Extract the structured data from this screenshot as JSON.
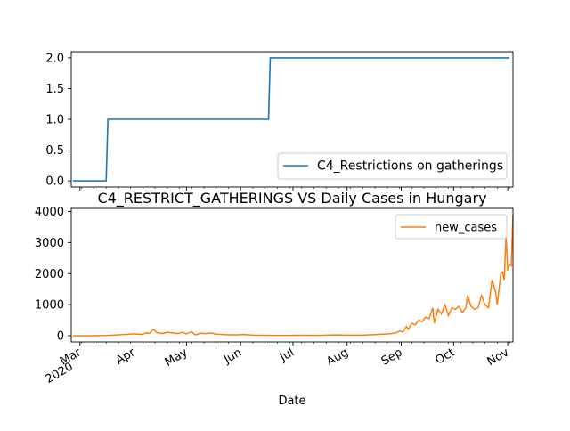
{
  "chart_data": [
    {
      "type": "line",
      "title": "",
      "xlabel": "",
      "ylabel": "",
      "ylim": [
        -0.1,
        2.1
      ],
      "yticks": [
        "0.0",
        "0.5",
        "1.0",
        "1.5",
        "2.0"
      ],
      "grid": false,
      "legend_position": "lower-right",
      "series": [
        {
          "name": "C4_Restrictions on gatherings",
          "color": "#1f77b4",
          "points": [
            [
              "2020-02-26",
              0
            ],
            [
              "2020-03-16",
              0
            ],
            [
              "2020-03-17",
              1
            ],
            [
              "2020-06-17",
              1
            ],
            [
              "2020-06-18",
              2
            ],
            [
              "2020-11-02",
              2
            ]
          ]
        }
      ]
    },
    {
      "type": "line",
      "title": "C4_RESTRICT_GATHERINGS VS Daily Cases in Hungary",
      "xlabel": "Date",
      "ylabel": "",
      "ylim": [
        -200,
        4100
      ],
      "yticks": [
        "0",
        "1000",
        "2000",
        "3000",
        "4000"
      ],
      "grid": false,
      "legend_position": "top-right",
      "xticks": [
        {
          "date": "2020-03-01",
          "label": "Mar",
          "sublabel": "2020"
        },
        {
          "date": "2020-04-01",
          "label": "Apr"
        },
        {
          "date": "2020-05-01",
          "label": "May"
        },
        {
          "date": "2020-06-01",
          "label": "Jun"
        },
        {
          "date": "2020-07-01",
          "label": "Jul"
        },
        {
          "date": "2020-08-01",
          "label": "Aug"
        },
        {
          "date": "2020-09-01",
          "label": "Sep"
        },
        {
          "date": "2020-10-01",
          "label": "Oct"
        },
        {
          "date": "2020-11-01",
          "label": "Nov"
        }
      ],
      "series": [
        {
          "name": "new_cases",
          "color": "#ff7f0e",
          "points": [
            [
              "2020-02-26",
              0
            ],
            [
              "2020-03-05",
              2
            ],
            [
              "2020-03-15",
              6
            ],
            [
              "2020-03-20",
              20
            ],
            [
              "2020-03-25",
              35
            ],
            [
              "2020-03-30",
              50
            ],
            [
              "2020-04-01",
              60
            ],
            [
              "2020-04-05",
              40
            ],
            [
              "2020-04-08",
              90
            ],
            [
              "2020-04-10",
              80
            ],
            [
              "2020-04-12",
              210
            ],
            [
              "2020-04-14",
              100
            ],
            [
              "2020-04-17",
              70
            ],
            [
              "2020-04-20",
              110
            ],
            [
              "2020-04-23",
              90
            ],
            [
              "2020-04-26",
              70
            ],
            [
              "2020-04-29",
              110
            ],
            [
              "2020-05-01",
              60
            ],
            [
              "2020-05-04",
              130
            ],
            [
              "2020-05-06",
              30
            ],
            [
              "2020-05-09",
              80
            ],
            [
              "2020-05-12",
              70
            ],
            [
              "2020-05-15",
              90
            ],
            [
              "2020-05-18",
              50
            ],
            [
              "2020-05-22",
              40
            ],
            [
              "2020-05-26",
              30
            ],
            [
              "2020-05-30",
              30
            ],
            [
              "2020-06-03",
              40
            ],
            [
              "2020-06-08",
              20
            ],
            [
              "2020-06-13",
              15
            ],
            [
              "2020-06-20",
              10
            ],
            [
              "2020-06-28",
              10
            ],
            [
              "2020-07-05",
              15
            ],
            [
              "2020-07-15",
              10
            ],
            [
              "2020-07-25",
              25
            ],
            [
              "2020-08-01",
              20
            ],
            [
              "2020-08-10",
              20
            ],
            [
              "2020-08-18",
              40
            ],
            [
              "2020-08-25",
              60
            ],
            [
              "2020-08-29",
              90
            ],
            [
              "2020-08-31",
              150
            ],
            [
              "2020-09-02",
              120
            ],
            [
              "2020-09-04",
              300
            ],
            [
              "2020-09-05",
              200
            ],
            [
              "2020-09-07",
              400
            ],
            [
              "2020-09-09",
              350
            ],
            [
              "2020-09-11",
              500
            ],
            [
              "2020-09-13",
              450
            ],
            [
              "2020-09-15",
              600
            ],
            [
              "2020-09-17",
              550
            ],
            [
              "2020-09-19",
              900
            ],
            [
              "2020-09-20",
              400
            ],
            [
              "2020-09-22",
              850
            ],
            [
              "2020-09-24",
              700
            ],
            [
              "2020-09-26",
              1000
            ],
            [
              "2020-09-28",
              650
            ],
            [
              "2020-09-30",
              900
            ],
            [
              "2020-10-02",
              850
            ],
            [
              "2020-10-04",
              950
            ],
            [
              "2020-10-06",
              750
            ],
            [
              "2020-10-08",
              900
            ],
            [
              "2020-10-09",
              1300
            ],
            [
              "2020-10-11",
              950
            ],
            [
              "2020-10-13",
              850
            ],
            [
              "2020-10-15",
              900
            ],
            [
              "2020-10-17",
              1300
            ],
            [
              "2020-10-19",
              1000
            ],
            [
              "2020-10-21",
              900
            ],
            [
              "2020-10-23",
              1800
            ],
            [
              "2020-10-25",
              1400
            ],
            [
              "2020-10-26",
              1000
            ],
            [
              "2020-10-28",
              2000
            ],
            [
              "2020-10-29",
              2050
            ],
            [
              "2020-10-30",
              1800
            ],
            [
              "2020-10-31",
              3200
            ],
            [
              "2020-11-01",
              2100
            ],
            [
              "2020-11-02",
              2300
            ],
            [
              "2020-11-03",
              2250
            ],
            [
              "2020-11-04",
              3900
            ]
          ]
        }
      ]
    }
  ]
}
